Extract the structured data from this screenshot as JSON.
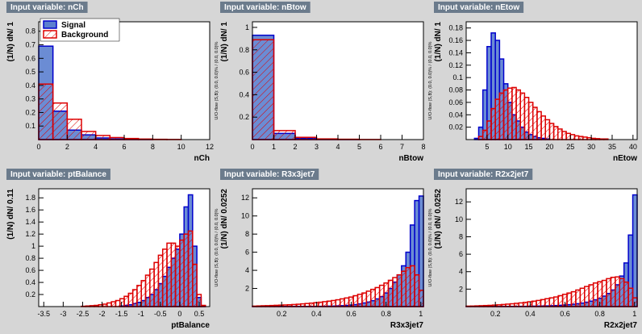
{
  "chart_data": [
    {
      "type": "histogram",
      "title": "Input variable: nCh",
      "xlabel": "nCh",
      "ylabel": "(1/N) dN/ 1",
      "side_note": "U/O-flow (S,B): (0.0, 0.0)% / (0.0, 0.0)%",
      "legend": "upper left",
      "bins": [
        0,
        1,
        2,
        3,
        4,
        5,
        6,
        7,
        8,
        9,
        10,
        11,
        12
      ],
      "series": [
        {
          "name": "Signal",
          "color": "#0000cc",
          "values": [
            0.69,
            0.21,
            0.07,
            0.035,
            0.012,
            0.005,
            0.002,
            0.001,
            0,
            0,
            0,
            0
          ]
        },
        {
          "name": "Background",
          "color": "#dd0000",
          "values": [
            0.41,
            0.27,
            0.15,
            0.06,
            0.03,
            0.015,
            0.008,
            0.004,
            0.002,
            0.001,
            0,
            0
          ]
        }
      ],
      "xlim": [
        0,
        12
      ],
      "ylim": [
        0,
        0.87
      ],
      "xticks": [
        0,
        2,
        4,
        6,
        8,
        10,
        12
      ],
      "yticks": [
        0.1,
        0.2,
        0.3,
        0.4,
        0.5,
        0.6,
        0.7,
        0.8
      ]
    },
    {
      "type": "histogram",
      "title": "Input variable: nBtow",
      "xlabel": "nBtow",
      "ylabel": "(1/N) dN/ 1",
      "side_note": "U/O-flow (S,B): (0.0, 0.0)% / (0.0, 0.0)%",
      "bins": [
        0,
        1,
        2,
        3,
        4,
        5,
        6,
        7,
        8
      ],
      "series": [
        {
          "color": "#0000cc",
          "values": [
            0.93,
            0.055,
            0.012,
            0.003,
            0.001,
            0,
            0,
            0
          ]
        },
        {
          "color": "#dd0000",
          "values": [
            0.89,
            0.08,
            0.02,
            0.006,
            0.003,
            0.001,
            0,
            0
          ]
        }
      ],
      "xlim": [
        0,
        8
      ],
      "ylim": [
        0,
        1.05
      ],
      "xticks": [
        0,
        1,
        2,
        3,
        4,
        5,
        6,
        7,
        8
      ],
      "yticks": [
        0.2,
        0.4,
        0.6,
        0.8,
        1
      ]
    },
    {
      "type": "histogram",
      "title": "Input variable: nEtow",
      "xlabel": "nEtow",
      "ylabel": "(1/N) dN/ 1",
      "side_note": "U/O-flow (S,B): (0.0, 0.0)% / (0.0, 0.0)%",
      "bins": [
        0,
        1,
        2,
        3,
        4,
        5,
        6,
        7,
        8,
        9,
        10,
        11,
        12,
        13,
        14,
        15,
        16,
        17,
        18,
        19,
        20,
        21,
        22,
        23,
        24,
        25,
        26,
        27,
        28,
        29,
        30,
        31,
        32,
        33,
        34,
        35,
        36,
        37,
        38,
        39,
        40,
        41
      ],
      "series": [
        {
          "color": "#0000cc",
          "values": [
            0,
            0,
            0.002,
            0.02,
            0.08,
            0.15,
            0.172,
            0.16,
            0.13,
            0.09,
            0.06,
            0.04,
            0.03,
            0.02,
            0.012,
            0.008,
            0.005,
            0.003,
            0.002,
            0.001,
            0,
            0,
            0,
            0,
            0,
            0,
            0,
            0,
            0,
            0,
            0,
            0,
            0,
            0,
            0,
            0,
            0,
            0,
            0,
            0,
            0
          ]
        },
        {
          "color": "#dd0000",
          "values": [
            0,
            0,
            0,
            0.005,
            0.015,
            0.03,
            0.05,
            0.065,
            0.075,
            0.08,
            0.083,
            0.084,
            0.08,
            0.075,
            0.068,
            0.06,
            0.052,
            0.045,
            0.038,
            0.032,
            0.026,
            0.021,
            0.017,
            0.013,
            0.01,
            0.008,
            0.006,
            0.005,
            0.004,
            0.003,
            0.002,
            0.0015,
            0.001,
            0.001,
            0,
            0,
            0,
            0,
            0,
            0,
            0
          ]
        }
      ],
      "xlim": [
        0,
        41
      ],
      "ylim": [
        0,
        0.19
      ],
      "xticks": [
        5,
        10,
        15,
        20,
        25,
        30,
        35,
        40
      ],
      "yticks": [
        0.02,
        0.04,
        0.06,
        0.08,
        0.1,
        0.12,
        0.14,
        0.16,
        0.18
      ]
    },
    {
      "type": "histogram",
      "title": "Input variable: ptBalance",
      "xlabel": "ptBalance",
      "ylabel": "(1/N) dN/ 0.11",
      "side_note": "U/O-flow (S,B): (0.0, 0.0)% / (0.0, 0.0)%",
      "bins": [
        -3.63,
        -3.52,
        -3.41,
        -3.3,
        -3.19,
        -3.08,
        -2.97,
        -2.86,
        -2.75,
        -2.64,
        -2.53,
        -2.42,
        -2.31,
        -2.2,
        -2.09,
        -1.98,
        -1.87,
        -1.76,
        -1.65,
        -1.54,
        -1.43,
        -1.32,
        -1.21,
        -1.1,
        -0.99,
        -0.88,
        -0.77,
        -0.66,
        -0.55,
        -0.44,
        -0.33,
        -0.22,
        -0.11,
        0,
        0.11,
        0.22,
        0.33,
        0.44,
        0.55,
        0.66,
        0.77
      ],
      "series": [
        {
          "color": "#0000cc",
          "values": [
            0,
            0,
            0,
            0,
            0,
            0,
            0,
            0,
            0,
            0,
            0,
            0,
            0,
            0,
            0,
            0,
            0,
            0,
            0,
            0.01,
            0.02,
            0.03,
            0.05,
            0.07,
            0.1,
            0.15,
            0.2,
            0.28,
            0.38,
            0.5,
            0.65,
            0.8,
            0.95,
            1.2,
            1.65,
            1.85,
            1.0,
            0.15,
            0.01,
            0
          ]
        },
        {
          "color": "#dd0000",
          "values": [
            0,
            0,
            0,
            0,
            0,
            0,
            0,
            0,
            0,
            0,
            0.005,
            0.01,
            0.015,
            0.02,
            0.03,
            0.04,
            0.06,
            0.08,
            0.1,
            0.13,
            0.17,
            0.22,
            0.28,
            0.35,
            0.43,
            0.52,
            0.62,
            0.73,
            0.85,
            0.95,
            1.05,
            1.05,
            1.0,
            1.1,
            1.2,
            1.25,
            0.7,
            0.2,
            0.02,
            0
          ]
        }
      ],
      "xlim": [
        -3.63,
        0.77
      ],
      "ylim": [
        0,
        1.95
      ],
      "xticks": [
        -3.5,
        -3,
        -2.5,
        -2,
        -1.5,
        -1,
        -0.5,
        0,
        0.5
      ],
      "yticks": [
        0.2,
        0.4,
        0.6,
        0.8,
        1,
        1.2,
        1.4,
        1.6,
        1.8
      ]
    },
    {
      "type": "histogram",
      "title": "Input variable: R3x3jet7",
      "xlabel": "R3x3jet7",
      "ylabel": "(1/N) dN/ 0.0252",
      "side_note": "U/O-flow (S,B): (0.0, 0.0)% / (0.0, 0.0)%",
      "bins": [
        0.0322,
        0.0574,
        0.0826,
        0.1078,
        0.133,
        0.1582,
        0.1834,
        0.2086,
        0.2338,
        0.259,
        0.2842,
        0.3094,
        0.3346,
        0.3598,
        0.385,
        0.4102,
        0.4354,
        0.4606,
        0.4858,
        0.511,
        0.5362,
        0.5614,
        0.5866,
        0.6118,
        0.637,
        0.6622,
        0.6874,
        0.7126,
        0.7378,
        0.763,
        0.7882,
        0.8134,
        0.8386,
        0.8638,
        0.889,
        0.9142,
        0.9394,
        0.9646,
        0.9898,
        1.015
      ],
      "series": [
        {
          "color": "#0000cc",
          "values": [
            0.02,
            0.02,
            0.02,
            0.02,
            0.02,
            0.02,
            0.02,
            0.02,
            0.02,
            0.02,
            0.02,
            0.02,
            0.02,
            0.02,
            0.02,
            0.03,
            0.04,
            0.05,
            0.06,
            0.08,
            0.1,
            0.13,
            0.17,
            0.22,
            0.3,
            0.4,
            0.5,
            0.65,
            0.85,
            1.1,
            1.5,
            2,
            2.7,
            3.5,
            4.5,
            6,
            9,
            11.7,
            12.2
          ]
        },
        {
          "color": "#dd0000",
          "values": [
            0.05,
            0.07,
            0.09,
            0.1,
            0.12,
            0.14,
            0.16,
            0.18,
            0.2,
            0.23,
            0.26,
            0.3,
            0.34,
            0.38,
            0.43,
            0.48,
            0.54,
            0.6,
            0.67,
            0.75,
            0.85,
            0.95,
            1.05,
            1.2,
            1.35,
            1.5,
            1.7,
            1.9,
            2.1,
            2.35,
            2.6,
            2.9,
            3.2,
            3.5,
            3.9,
            4.3,
            4.5,
            3.5,
            1.8
          ]
        }
      ],
      "xlim": [
        0.0322,
        1.015
      ],
      "ylim": [
        0,
        13
      ],
      "xticks": [
        0.2,
        0.4,
        0.6,
        0.8,
        1
      ],
      "yticks": [
        2,
        4,
        6,
        8,
        10,
        12
      ]
    },
    {
      "type": "histogram",
      "title": "Input variable: R2x2jet7",
      "xlabel": "R2x2jet7",
      "ylabel": "(1/N) dN/ 0.0252",
      "side_note": "U/O-flow (S,B): (0.0, 0.0)% / (0.0, 0.0)%",
      "bins": [
        0.0322,
        0.0574,
        0.0826,
        0.1078,
        0.133,
        0.1582,
        0.1834,
        0.2086,
        0.2338,
        0.259,
        0.2842,
        0.3094,
        0.3346,
        0.3598,
        0.385,
        0.4102,
        0.4354,
        0.4606,
        0.4858,
        0.511,
        0.5362,
        0.5614,
        0.5866,
        0.6118,
        0.637,
        0.6622,
        0.6874,
        0.7126,
        0.7378,
        0.763,
        0.7882,
        0.8134,
        0.8386,
        0.8638,
        0.889,
        0.9142,
        0.9394,
        0.9646,
        0.9898,
        1.015
      ],
      "series": [
        {
          "color": "#0000cc",
          "values": [
            0.01,
            0.01,
            0.01,
            0.01,
            0.01,
            0.01,
            0.01,
            0.01,
            0.01,
            0.02,
            0.02,
            0.02,
            0.03,
            0.03,
            0.04,
            0.05,
            0.06,
            0.07,
            0.08,
            0.1,
            0.12,
            0.15,
            0.18,
            0.22,
            0.27,
            0.33,
            0.4,
            0.5,
            0.62,
            0.78,
            0.95,
            1.2,
            1.5,
            1.9,
            2.5,
            3.5,
            5,
            8.2,
            12.8
          ]
        },
        {
          "color": "#dd0000",
          "values": [
            0.05,
            0.06,
            0.08,
            0.1,
            0.12,
            0.14,
            0.17,
            0.2,
            0.24,
            0.28,
            0.32,
            0.37,
            0.42,
            0.48,
            0.55,
            0.62,
            0.7,
            0.8,
            0.9,
            1.0,
            1.1,
            1.25,
            1.4,
            1.55,
            1.7,
            1.9,
            2.1,
            2.3,
            2.5,
            2.7,
            2.85,
            3.0,
            3.2,
            3.35,
            3.4,
            3.2,
            2.8,
            2.1,
            1.0
          ]
        }
      ],
      "xlim": [
        0.0322,
        1.015
      ],
      "ylim": [
        0,
        13.5
      ],
      "xticks": [
        0.2,
        0.4,
        0.6,
        0.8,
        1
      ],
      "yticks": [
        2,
        4,
        6,
        8,
        10,
        12
      ]
    }
  ]
}
